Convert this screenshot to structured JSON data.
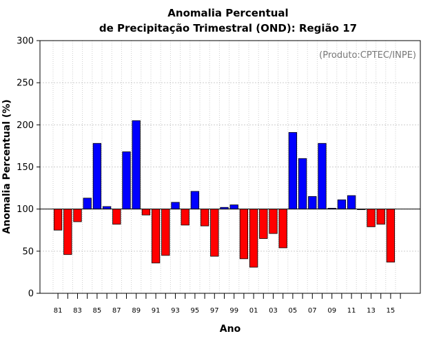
{
  "chart_data": {
    "type": "bar",
    "title_line1": "Anomalia Percentual",
    "title_line2": "de Precipitação Trimestral (OND): Região 17",
    "xlabel": "Ano",
    "ylabel": "Anomalia Percentual (%)",
    "source": "(Produto:CPTEC/INPE)",
    "baseline": 100,
    "ylim": [
      0,
      300
    ],
    "yticks": [
      0,
      50,
      100,
      150,
      200,
      250,
      300
    ],
    "grid": true,
    "categories": [
      "81",
      "82",
      "83",
      "84",
      "85",
      "86",
      "87",
      "88",
      "89",
      "90",
      "91",
      "92",
      "93",
      "94",
      "95",
      "96",
      "97",
      "98",
      "99",
      "00",
      "01",
      "02",
      "03",
      "04",
      "05",
      "06",
      "07",
      "08",
      "09",
      "10",
      "11",
      "12",
      "13",
      "14",
      "15"
    ],
    "x_tick_labels": [
      "81",
      "83",
      "85",
      "87",
      "89",
      "91",
      "93",
      "95",
      "97",
      "99",
      "01",
      "03",
      "05",
      "07",
      "09",
      "11",
      "13",
      "15"
    ],
    "values": [
      75,
      46,
      85,
      113,
      178,
      103,
      82,
      168,
      205,
      93,
      36,
      45,
      108,
      81,
      121,
      80,
      44,
      102,
      105,
      41,
      31,
      65,
      71,
      54,
      191,
      160,
      115,
      178,
      101,
      111,
      116,
      100,
      79,
      82,
      37
    ],
    "colors": {
      "above": "#0000ff",
      "below": "#ff0000"
    }
  }
}
